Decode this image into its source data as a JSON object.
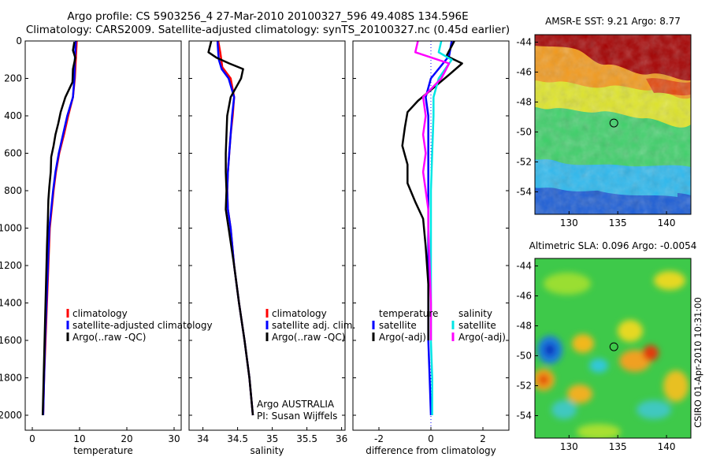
{
  "header": {
    "line1": "Argo profile: CS 5903256_4 27-Mar-2010 20100327_596 49.408S 134.596E",
    "line2": "Climatology: CARS2009. Satellite-adjusted climatology: synTS_20100327.nc (0.45d earlier)"
  },
  "footer": {
    "credit": "CSIRO 01-Apr-2010 10:31:00",
    "institution": "Argo AUSTRALIA",
    "pi": "PI: Susan Wijffels"
  },
  "colors": {
    "climatology": "#ff0000",
    "satellite": "#0000ff",
    "argo": "#000000",
    "salinity_satellite": "#00e5e5",
    "salinity_argo": "#ff00ff",
    "zero_line": "#0000ff"
  },
  "chart_data": [
    {
      "type": "line",
      "id": "temperature",
      "xlabel": "temperature",
      "ylabel": "",
      "xlim": [
        -1.5,
        31.5
      ],
      "ylim": [
        2080,
        0
      ],
      "xticks": [
        0,
        10,
        20,
        30
      ],
      "yticks": [
        0,
        200,
        400,
        600,
        800,
        1000,
        1200,
        1400,
        1600,
        1800,
        2000
      ],
      "legend": [
        "climatology",
        "satellite-adjusted climatology",
        "Argo(..raw -QC)"
      ],
      "series": [
        {
          "name": "climatology",
          "color": "#ff0000",
          "points": [
            [
              9.4,
              0
            ],
            [
              9.2,
              100
            ],
            [
              9.0,
              200
            ],
            [
              8.6,
              300
            ],
            [
              7.6,
              400
            ],
            [
              6.7,
              500
            ],
            [
              5.7,
              600
            ],
            [
              5.0,
              700
            ],
            [
              4.5,
              800
            ],
            [
              4.1,
              900
            ],
            [
              3.7,
              1000
            ],
            [
              3.4,
              1200
            ],
            [
              3.1,
              1400
            ],
            [
              2.8,
              1600
            ],
            [
              2.5,
              1800
            ],
            [
              2.3,
              2000
            ]
          ]
        },
        {
          "name": "satellite-adjusted climatology",
          "color": "#0000ff",
          "points": [
            [
              9.2,
              0
            ],
            [
              9.0,
              100
            ],
            [
              8.9,
              200
            ],
            [
              8.6,
              300
            ],
            [
              7.4,
              400
            ],
            [
              6.5,
              500
            ],
            [
              5.6,
              600
            ],
            [
              4.9,
              700
            ],
            [
              4.4,
              800
            ],
            [
              4.0,
              900
            ],
            [
              3.6,
              1000
            ],
            [
              3.3,
              1200
            ],
            [
              3.0,
              1400
            ],
            [
              2.7,
              1600
            ],
            [
              2.5,
              1800
            ],
            [
              2.3,
              2000
            ]
          ]
        },
        {
          "name": "Argo(..raw -QC)",
          "color": "#000000",
          "points": [
            [
              8.9,
              5
            ],
            [
              8.6,
              50
            ],
            [
              9.1,
              90
            ],
            [
              8.6,
              150
            ],
            [
              8.5,
              220
            ],
            [
              7.0,
              300
            ],
            [
              6.0,
              380
            ],
            [
              5.5,
              440
            ],
            [
              4.9,
              500
            ],
            [
              4.5,
              560
            ],
            [
              4.0,
              620
            ],
            [
              3.9,
              700
            ],
            [
              3.6,
              780
            ],
            [
              3.4,
              850
            ],
            [
              3.3,
              950
            ],
            [
              3.1,
              1100
            ],
            [
              2.9,
              1300
            ],
            [
              2.7,
              1500
            ],
            [
              2.5,
              1700
            ],
            [
              2.3,
              1900
            ],
            [
              2.2,
              2000
            ]
          ]
        }
      ]
    },
    {
      "type": "line",
      "id": "salinity",
      "xlabel": "salinity",
      "ylabel": "",
      "xlim": [
        33.8,
        36.05
      ],
      "ylim": [
        2080,
        0
      ],
      "xticks": [
        34,
        34.5,
        35,
        35.5,
        36
      ],
      "yticks": [
        0,
        200,
        400,
        600,
        800,
        1000,
        1200,
        1400,
        1600,
        1800,
        2000
      ],
      "legend": [
        "climatology",
        "satellite adj. clim.",
        "Argo(..raw -QC)"
      ],
      "series": [
        {
          "name": "climatology",
          "color": "#ff0000",
          "points": [
            [
              34.22,
              0
            ],
            [
              34.25,
              60
            ],
            [
              34.28,
              140
            ],
            [
              34.4,
              200
            ],
            [
              34.45,
              300
            ],
            [
              34.43,
              400
            ],
            [
              34.4,
              500
            ],
            [
              34.38,
              600
            ],
            [
              34.36,
              700
            ],
            [
              34.35,
              800
            ],
            [
              34.36,
              900
            ],
            [
              34.4,
              1000
            ],
            [
              34.45,
              1200
            ],
            [
              34.52,
              1400
            ],
            [
              34.6,
              1600
            ],
            [
              34.67,
              1800
            ],
            [
              34.72,
              2000
            ]
          ]
        },
        {
          "name": "satellite adj. clim.",
          "color": "#0000ff",
          "points": [
            [
              34.21,
              0
            ],
            [
              34.22,
              60
            ],
            [
              34.23,
              100
            ],
            [
              34.27,
              150
            ],
            [
              34.37,
              200
            ],
            [
              34.45,
              300
            ],
            [
              34.42,
              400
            ],
            [
              34.4,
              500
            ],
            [
              34.38,
              600
            ],
            [
              34.36,
              700
            ],
            [
              34.35,
              800
            ],
            [
              34.36,
              900
            ],
            [
              34.4,
              1000
            ],
            [
              34.45,
              1200
            ],
            [
              34.52,
              1400
            ],
            [
              34.6,
              1600
            ],
            [
              34.67,
              1800
            ],
            [
              34.72,
              2000
            ]
          ]
        },
        {
          "name": "Argo(..raw -QC)",
          "color": "#000000",
          "points": [
            [
              34.12,
              0
            ],
            [
              34.08,
              60
            ],
            [
              34.2,
              90
            ],
            [
              34.38,
              120
            ],
            [
              34.58,
              150
            ],
            [
              34.55,
              200
            ],
            [
              34.4,
              300
            ],
            [
              34.35,
              400
            ],
            [
              34.34,
              500
            ],
            [
              34.33,
              600
            ],
            [
              34.33,
              700
            ],
            [
              34.34,
              800
            ],
            [
              34.33,
              900
            ],
            [
              34.37,
              1000
            ],
            [
              34.45,
              1200
            ],
            [
              34.52,
              1400
            ],
            [
              34.6,
              1600
            ],
            [
              34.67,
              1800
            ],
            [
              34.72,
              2000
            ]
          ]
        }
      ]
    },
    {
      "type": "line",
      "id": "difference",
      "xlabel": "difference from climatology",
      "ylabel": "",
      "xlim": [
        -3,
        3
      ],
      "ylim": [
        2080,
        0
      ],
      "xticks": [
        -2,
        0,
        2
      ],
      "yticks": [
        0,
        200,
        400,
        600,
        800,
        1000,
        1200,
        1400,
        1600,
        1800,
        2000
      ],
      "legend_temperature_title": "temperature",
      "legend_salinity_title": "salinity",
      "legend_temperature": [
        "satellite",
        "Argo(-adj)"
      ],
      "legend_salinity": [
        "satellite",
        "Argo(-adj)"
      ],
      "series": [
        {
          "name": "temperature satellite",
          "color": "#0000ff",
          "points": [
            [
              0.8,
              0
            ],
            [
              0.7,
              80
            ],
            [
              0.0,
              200
            ],
            [
              -0.2,
              300
            ],
            [
              -0.1,
              400
            ],
            [
              -0.1,
              600
            ],
            [
              -0.1,
              800
            ],
            [
              -0.1,
              1000
            ],
            [
              -0.1,
              1200
            ],
            [
              -0.1,
              1400
            ],
            [
              -0.1,
              1600
            ],
            [
              -0.05,
              1800
            ],
            [
              0,
              2000
            ]
          ]
        },
        {
          "name": "temperature Argo(-adj)",
          "color": "#000000",
          "points": [
            [
              0.9,
              0
            ],
            [
              0.6,
              80
            ],
            [
              1.2,
              120
            ],
            [
              0.7,
              180
            ],
            [
              -0.5,
              320
            ],
            [
              -0.9,
              380
            ],
            [
              -1.0,
              460
            ],
            [
              -1.1,
              560
            ],
            [
              -0.9,
              660
            ],
            [
              -0.9,
              760
            ],
            [
              -0.6,
              860
            ],
            [
              -0.3,
              950
            ],
            [
              -0.2,
              1100
            ],
            [
              -0.1,
              1300
            ],
            [
              -0.1,
              1500
            ],
            [
              -0.1,
              1600
            ]
          ]
        },
        {
          "name": "salinity satellite",
          "color": "#00e5e5",
          "points": [
            [
              0.4,
              0
            ],
            [
              0.3,
              60
            ],
            [
              0.8,
              100
            ],
            [
              0.3,
              200
            ],
            [
              0.1,
              300
            ],
            [
              0.1,
              400
            ],
            [
              0.05,
              600
            ],
            [
              0.0,
              800
            ],
            [
              0.0,
              1000
            ],
            [
              0.0,
              1200
            ],
            [
              0.0,
              1400
            ],
            [
              0.0,
              1600
            ],
            [
              0.05,
              1800
            ],
            [
              0.05,
              2000
            ]
          ]
        },
        {
          "name": "salinity Argo(-adj)",
          "color": "#ff00ff",
          "points": [
            [
              -0.5,
              0
            ],
            [
              -0.6,
              60
            ],
            [
              0.7,
              120
            ],
            [
              0.4,
              200
            ],
            [
              -0.3,
              300
            ],
            [
              -0.2,
              400
            ],
            [
              -0.3,
              500
            ],
            [
              -0.2,
              600
            ],
            [
              -0.3,
              700
            ],
            [
              -0.2,
              800
            ],
            [
              -0.1,
              900
            ],
            [
              -0.1,
              1000
            ],
            [
              -0.05,
              1200
            ],
            [
              0,
              1400
            ],
            [
              0,
              1600
            ]
          ]
        }
      ]
    },
    {
      "type": "heatmap",
      "id": "sst_map",
      "title": "AMSR-E SST: 9.21 Argo: 8.77",
      "xlim": [
        126.5,
        142.5
      ],
      "ylim": [
        -55.5,
        -43.5
      ],
      "xticks": [
        130,
        135,
        140
      ],
      "yticks": [
        -44,
        -46,
        -48,
        -50,
        -52,
        -54
      ],
      "marker": {
        "lon": 134.6,
        "lat": -49.4
      }
    },
    {
      "type": "heatmap",
      "id": "sla_map",
      "title": "Altimetric SLA: 0.096 Argo: -0.0054",
      "xlim": [
        126.5,
        142.5
      ],
      "ylim": [
        -55.5,
        -43.5
      ],
      "xticks": [
        130,
        135,
        140
      ],
      "yticks": [
        -44,
        -46,
        -48,
        -50,
        -52,
        -54
      ],
      "marker": {
        "lon": 134.6,
        "lat": -49.4
      }
    }
  ]
}
